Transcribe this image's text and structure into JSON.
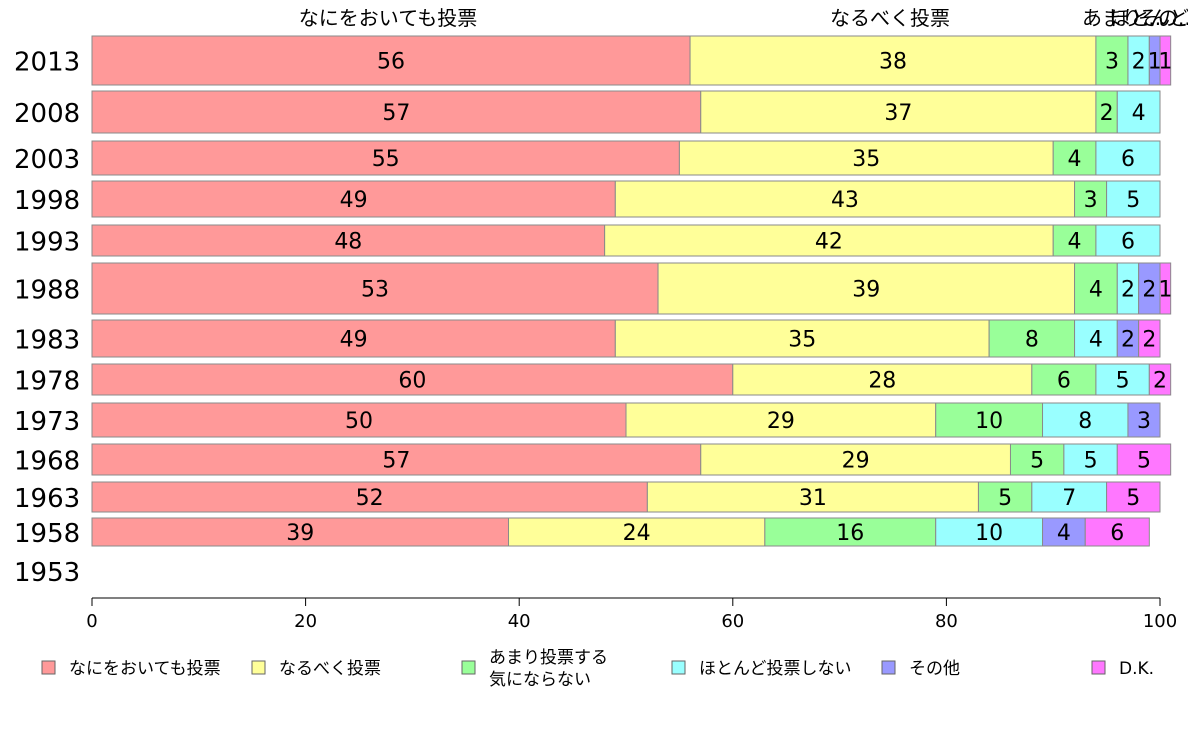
{
  "chart_data": {
    "type": "bar",
    "orientation": "horizontal",
    "stacked": true,
    "categories": [
      "2013",
      "2008",
      "2003",
      "1998",
      "1993",
      "1988",
      "1983",
      "1978",
      "1973",
      "1968",
      "1963",
      "1958",
      "1953"
    ],
    "series": [
      {
        "name": "なにをおいても投票",
        "color": "#ff9999",
        "values": [
          56,
          57,
          55,
          49,
          48,
          53,
          49,
          60,
          50,
          57,
          52,
          39,
          null
        ]
      },
      {
        "name": "なるべく投票",
        "color": "#ffff99",
        "values": [
          38,
          37,
          35,
          43,
          42,
          39,
          35,
          28,
          29,
          29,
          31,
          24,
          null
        ]
      },
      {
        "name": "あまり投票する\n気にならない",
        "color": "#99ff99",
        "values": [
          3,
          2,
          4,
          3,
          4,
          4,
          8,
          6,
          10,
          5,
          5,
          16,
          null
        ]
      },
      {
        "name": "ほとんど投票しない",
        "color": "#99ffff",
        "values": [
          2,
          4,
          6,
          5,
          6,
          2,
          4,
          5,
          8,
          5,
          7,
          10,
          null
        ]
      },
      {
        "name": "その他",
        "color": "#9999ff",
        "values": [
          1,
          0,
          0,
          0,
          0,
          2,
          2,
          0,
          3,
          0,
          0,
          4,
          null
        ]
      },
      {
        "name": "D.K.",
        "color": "#ff77ff",
        "values": [
          1,
          0,
          0,
          0,
          0,
          1,
          2,
          2,
          0,
          5,
          5,
          6,
          null
        ]
      }
    ],
    "top_labels": [
      "なにをおいても投票",
      "なるべく投票",
      "あまり...",
      "ほとんど...",
      "その..."
    ],
    "xlim": [
      0,
      100
    ],
    "xticks": [
      0,
      20,
      40,
      60,
      80,
      100
    ],
    "legend_position": "bottom",
    "grid": false
  }
}
